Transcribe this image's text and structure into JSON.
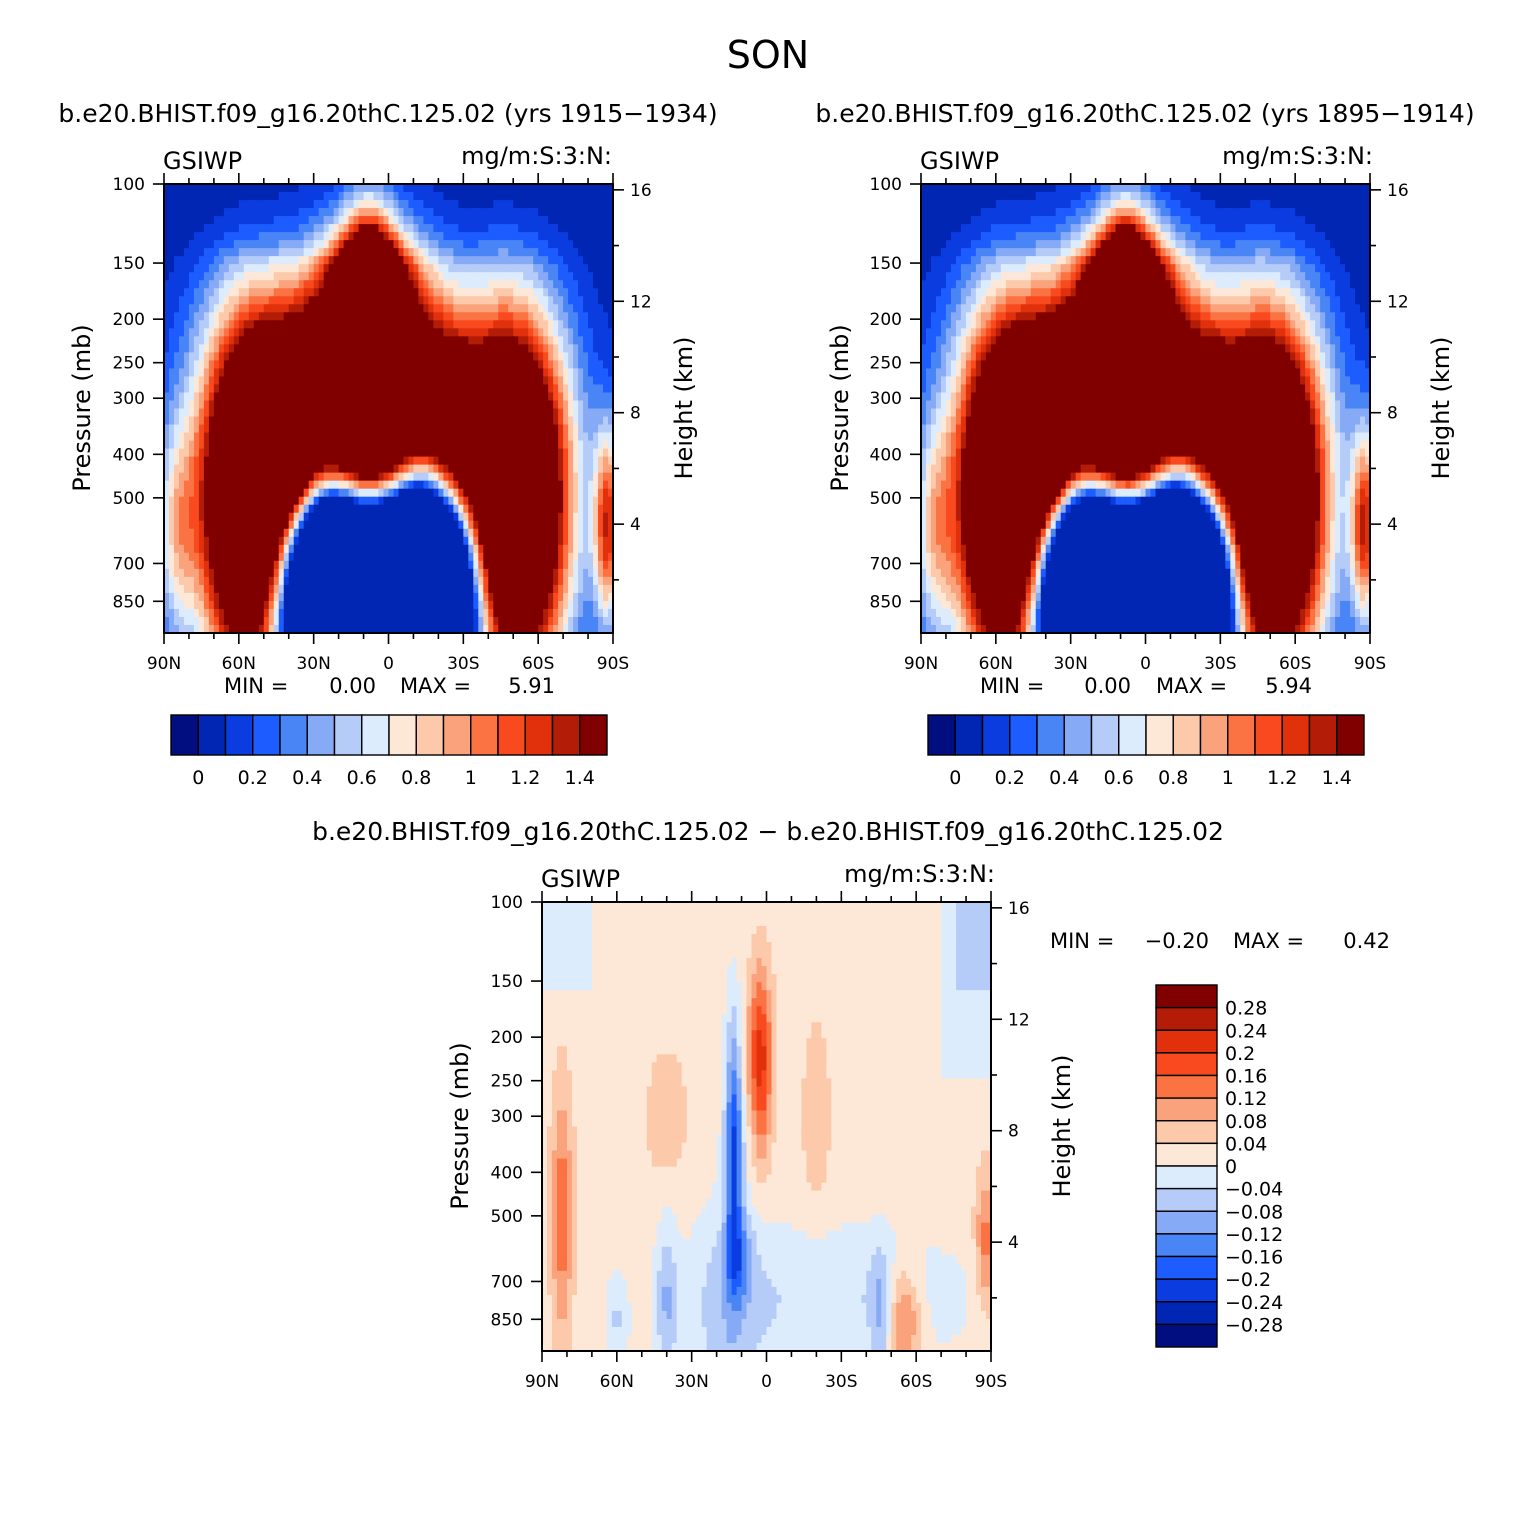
{
  "figure": {
    "title": "SON",
    "diff_title": "b.e20.BHIST.f09_g16.20thC.125.02 − b.e20.BHIST.f09_g16.20thC.125.02"
  },
  "colors": {
    "levels_main": [
      "#000e80",
      "#0226b4",
      "#0a3ce0",
      "#1d5cff",
      "#4a85f6",
      "#86aaf6",
      "#b5ccf9",
      "#dcecfc",
      "#fde7d6",
      "#fcc9aa",
      "#faa27c",
      "#fb7342",
      "#f94a1f",
      "#e1300c",
      "#b31d07",
      "#800000"
    ],
    "levels_diff": [
      "#000e80",
      "#0226b4",
      "#0a3ce0",
      "#1d5cff",
      "#4a85f6",
      "#86aaf6",
      "#b5ccf9",
      "#dcecfc",
      "#fde7d6",
      "#fcc9aa",
      "#faa27c",
      "#fb7342",
      "#f94a1f",
      "#e1300c",
      "#b31d07",
      "#800000"
    ]
  },
  "chart_data": [
    {
      "type": "heatmap",
      "title": "b.e20.BHIST.f09_g16.20thC.125.02 (yrs 1915−1934)",
      "left_label": "GSIWP",
      "right_label": "mg/m:S:3:N:",
      "xlabel": "",
      "ylabel": "Pressure (mb)",
      "ylabel_right": "Height (km)",
      "x_ticks": [
        "90N",
        "60N",
        "30N",
        "0",
        "30S",
        "60S",
        "90S"
      ],
      "x_range": [
        90,
        -90
      ],
      "y_ticks": [
        100,
        150,
        200,
        250,
        300,
        400,
        500,
        700,
        850
      ],
      "y_range": [
        100,
        1000
      ],
      "y_scale": "log",
      "right_ticks": [
        16,
        12,
        8,
        4
      ],
      "min_text": "MIN =",
      "min_value": "0.00",
      "max_text": "MAX =",
      "max_value": "5.91",
      "min": 0.0,
      "max": 5.91,
      "colorbar_labels": [
        "0",
        "0.2",
        "0.4",
        "0.6",
        "0.8",
        "1",
        "1.2",
        "1.4"
      ],
      "contour_levels": [
        0,
        0.1,
        0.2,
        0.3,
        0.4,
        0.5,
        0.6,
        0.7,
        0.8,
        0.9,
        1.0,
        1.1,
        1.2,
        1.3,
        1.4
      ]
    },
    {
      "type": "heatmap",
      "title": "b.e20.BHIST.f09_g16.20thC.125.02 (yrs 1895−1914)",
      "left_label": "GSIWP",
      "right_label": "mg/m:S:3:N:",
      "xlabel": "",
      "ylabel": "Pressure (mb)",
      "ylabel_right": "Height (km)",
      "x_ticks": [
        "90N",
        "60N",
        "30N",
        "0",
        "30S",
        "60S",
        "90S"
      ],
      "x_range": [
        90,
        -90
      ],
      "y_ticks": [
        100,
        150,
        200,
        250,
        300,
        400,
        500,
        700,
        850
      ],
      "y_range": [
        100,
        1000
      ],
      "y_scale": "log",
      "right_ticks": [
        16,
        12,
        8,
        4
      ],
      "min_text": "MIN =",
      "min_value": "0.00",
      "max_text": "MAX =",
      "max_value": "5.94",
      "min": 0.0,
      "max": 5.94,
      "colorbar_labels": [
        "0",
        "0.2",
        "0.4",
        "0.6",
        "0.8",
        "1",
        "1.2",
        "1.4"
      ],
      "contour_levels": [
        0,
        0.1,
        0.2,
        0.3,
        0.4,
        0.5,
        0.6,
        0.7,
        0.8,
        0.9,
        1.0,
        1.1,
        1.2,
        1.3,
        1.4
      ]
    },
    {
      "type": "heatmap",
      "title": "b.e20.BHIST.f09_g16.20thC.125.02 − b.e20.BHIST.f09_g16.20thC.125.02",
      "left_label": "GSIWP",
      "right_label": "mg/m:S:3:N:",
      "xlabel": "",
      "ylabel": "Pressure (mb)",
      "ylabel_right": "Height (km)",
      "x_ticks": [
        "90N",
        "60N",
        "30N",
        "0",
        "30S",
        "60S",
        "90S"
      ],
      "x_range": [
        90,
        -90
      ],
      "y_ticks": [
        100,
        150,
        200,
        250,
        300,
        400,
        500,
        700,
        850
      ],
      "y_range": [
        100,
        1000
      ],
      "y_scale": "log",
      "right_ticks": [
        16,
        12,
        8,
        4
      ],
      "min_text": "MIN =",
      "min_value": "−0.20",
      "max_text": "MAX =",
      "max_value": "0.42",
      "min": -0.2,
      "max": 0.42,
      "colorbar_labels": [
        "0.28",
        "0.24",
        "0.2",
        "0.16",
        "0.12",
        "0.08",
        "0.04",
        "0",
        "−0.04",
        "−0.08",
        "−0.12",
        "−0.16",
        "−0.2",
        "−0.24",
        "−0.28"
      ],
      "contour_levels": [
        -0.28,
        -0.24,
        -0.2,
        -0.16,
        -0.12,
        -0.08,
        -0.04,
        0,
        0.04,
        0.08,
        0.12,
        0.16,
        0.2,
        0.24,
        0.28
      ]
    }
  ]
}
